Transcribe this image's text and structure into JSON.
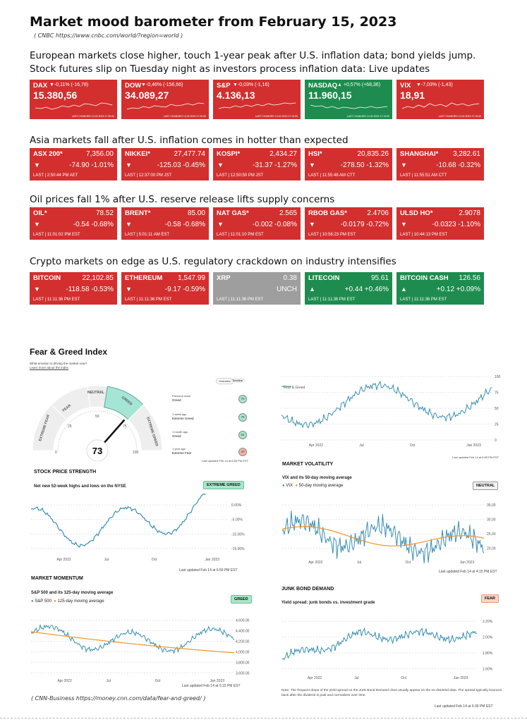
{
  "header": {
    "title": "Market mood barometer from February 15, 2023",
    "source": "( CNBC https://www.cnbc.com/world/?region=world )"
  },
  "sections": [
    {
      "headline": "European markets close higher, touch 1-year peak after U.S. inflation data; bond yields jump. Stock futures slip on Tuesday night as investors process inflation data: Live updates"
    },
    {
      "headline": "Asia markets fall after U.S. inflation comes in hotter than expected"
    },
    {
      "headline": "Oil prices fall 1% after U.S. reserve release lifts supply concerns"
    },
    {
      "headline": "Crypto markets on edge as U.S. regulatory crackdown on industry intensifies"
    }
  ],
  "us_tiles": [
    {
      "sym": "DAX",
      "chg": "▼-0,11% (-16,78)",
      "price": "15.380,56",
      "color": "#d32f2f",
      "footer": "LAST CHANGED 14.02.2023 17:35:00"
    },
    {
      "sym": "DOW",
      "chg": "▼-0,46% (-156,66)",
      "price": "34.089,27",
      "color": "#d32f2f",
      "footer": "LAST CHANGED 14.02.2023 17:20:00"
    },
    {
      "sym": "S&P",
      "chg": "▼-0,03% (-1,16)",
      "price": "4.136,13",
      "color": "#d32f2f",
      "footer": "LAST CHANGED 14.02.2023 17:19:00"
    },
    {
      "sym": "NASDAQ",
      "chg": "▲ +0,57% (+68,36)",
      "price": "11.960,15",
      "color": "#1e8c4e",
      "footer": "LAST CHANGED 14.02.2023 17:19:00"
    },
    {
      "sym": "VIX",
      "chg": "▼-7,03% (-1,43)",
      "price": "18,91",
      "color": "#d32f2f",
      "footer": "LAST CHANGED 14.02.2023 17:15:00"
    }
  ],
  "asia_tiles": [
    {
      "sym": "ASX 200*",
      "price": "7,356.00",
      "arrow": "▼",
      "chg": "-74.90  -1.01%",
      "last": "LAST | 2:50:44 PM AET",
      "color": "#d32f2f"
    },
    {
      "sym": "NIKKEI*",
      "price": "27,477.74",
      "arrow": "▼",
      "chg": "-125.03  -0.45%",
      "last": "LAST | 12:37:00 PM JST",
      "color": "#d32f2f"
    },
    {
      "sym": "KOSPI*",
      "price": "2,434.27",
      "arrow": "▼",
      "chg": "-31.37  -1.27%",
      "last": "LAST | 12:50:50 PM JST",
      "color": "#d32f2f"
    },
    {
      "sym": "HSI*",
      "price": "20,835.26",
      "arrow": "▼",
      "chg": "-278.50  -1.32%",
      "last": "LAST | 11:55:48 AM CTT",
      "color": "#d32f2f"
    },
    {
      "sym": "SHANGHAI*",
      "price": "3,282.61",
      "arrow": "▼",
      "chg": "-10.68  -0.32%",
      "last": "LAST | 11:55:51 AM CTT",
      "color": "#d32f2f"
    }
  ],
  "oil_tiles": [
    {
      "sym": "OIL*",
      "price": "78.52",
      "arrow": "▼",
      "chg": "-0.54  -0.68%",
      "last": "LAST | 11:01:02 PM EST",
      "color": "#d32f2f"
    },
    {
      "sym": "BRENT*",
      "price": "85.00",
      "arrow": "▼",
      "chg": "-0.58  -0.68%",
      "last": "LAST | 5:01:11 AM EST",
      "color": "#d32f2f"
    },
    {
      "sym": "NAT GAS*",
      "price": "2.565",
      "arrow": "▼",
      "chg": "-0.002  -0.08%",
      "last": "LAST | 11:01:10 PM EST",
      "color": "#d32f2f"
    },
    {
      "sym": "RBOB GAS*",
      "price": "2.4706",
      "arrow": "▼",
      "chg": "-0.0179  -0.72%",
      "last": "LAST | 10:56:23 PM EST",
      "color": "#d32f2f"
    },
    {
      "sym": "ULSD HO*",
      "price": "2.9078",
      "arrow": "▼",
      "chg": "-0.0323  -1.10%",
      "last": "LAST | 10:44:13 PM EST",
      "color": "#d32f2f"
    }
  ],
  "crypto_tiles": [
    {
      "sym": "BITCOIN",
      "price": "22,102.85",
      "arrow": "▼",
      "chg": "-118.58  -0.53%",
      "last": "LAST | 11:11:36 PM EST",
      "color": "#d32f2f"
    },
    {
      "sym": "ETHEREUM",
      "price": "1,547.99",
      "arrow": "▼",
      "chg": "-9.17  -0.59%",
      "last": "LAST | 11:11:36 PM EST",
      "color": "#d32f2f"
    },
    {
      "sym": "XRP",
      "price": "0.38",
      "arrow": "",
      "chg": "UNCH",
      "last": "LAST | 11:11:36 PM EST",
      "color": "#9e9e9e"
    },
    {
      "sym": "LITECOIN",
      "price": "95.61",
      "arrow": "▲",
      "chg": "+0.44  +0.46%",
      "last": "LAST | 11:11:36 PM EST",
      "color": "#1e8c4e"
    },
    {
      "sym": "BITCOIN CASH",
      "price": "126.56",
      "arrow": "▲",
      "chg": "+0.12  +0.09%",
      "last": "LAST | 11:11:36 PM EST",
      "color": "#1e8c4e"
    }
  ],
  "fear_greed": {
    "title": "Fear & Greed Index",
    "question": "What emotion is driving the market now?",
    "learn_more": "Learn more about the index",
    "tab_overview": "Overview",
    "tab_timeline": "Timeline",
    "value": 73,
    "labels": {
      "extreme_fear": "EXTREME FEAR",
      "fear": "FEAR",
      "neutral": "NEUTRAL",
      "greed": "GREED",
      "extreme_greed": "EXTREME GREED"
    },
    "scale": [
      "0",
      "25",
      "50",
      "75",
      "100"
    ],
    "history": [
      {
        "when": "Previous close",
        "label": "Greed",
        "value": "76"
      },
      {
        "when": "1 week ago",
        "label": "Extreme Greed",
        "value": "78"
      },
      {
        "when": "1 month ago",
        "label": "Greed",
        "value": "64"
      },
      {
        "when": "1 year ago",
        "label": "Extreme Fear",
        "value": "20"
      }
    ],
    "updated": "Last updated Feb 14 at 6:59 PM EST"
  },
  "timeline_chart": {
    "legend": "Fear & Greed",
    "y_ticks": [
      "100",
      "75",
      "50",
      "25",
      "0"
    ],
    "x_ticks": [
      "Apr 2022",
      "Jul",
      "Oct",
      "Jan 2023"
    ],
    "updated": "Last updated Feb 14 at 6:59 PM EST"
  },
  "stock_strength": {
    "title": "STOCK PRICE STRENGTH",
    "subtitle": "Net new 52-week highs and lows on the NYSE",
    "badge": "EXTREME GREED",
    "y_ticks": [
      "0.00%",
      "-5.00%",
      "-10.00%",
      "-15.00%"
    ],
    "x_ticks": [
      "Apr 2022",
      "Jul",
      "Oct",
      "Jan 2023"
    ],
    "updated": "Last updated Feb 14 at 6:59 PM EST"
  },
  "volatility": {
    "title": "MARKET VOLATILITY",
    "subtitle": "VIX and its 50-day moving average",
    "legend_a": "VIX",
    "legend_b": "50-day moving average",
    "badge": "NEUTRAL",
    "y_ticks": [
      "35,00",
      "30,00",
      "25,00",
      "20,00"
    ],
    "x_ticks": [
      "Apr 2022",
      "Jul",
      "Oct",
      "Jan 2023"
    ],
    "updated": "Last updated Feb 14 at 4:15 PM EST"
  },
  "momentum": {
    "title": "MARKET MOMENTUM",
    "subtitle": "S&P 500 and its 125-day moving average",
    "legend_a": "S&P 500",
    "legend_b": "125-day moving average",
    "badge": "GREED",
    "y_ticks": [
      "4,600.00",
      "4,400.00",
      "4,200.00",
      "4,000.00",
      "3,800.00",
      "3,600.00"
    ],
    "x_ticks": [
      "Apr 2022",
      "Jul",
      "Oct",
      "Jan 2023"
    ],
    "updated": "Last updated Feb 14 at 5:15 PM EST"
  },
  "junk_bond": {
    "title": "JUNK BOND DEMAND",
    "subtitle": "Yield spread: junk bonds vs. investment grade",
    "badge": "FEAR",
    "y_ticks": [
      "2.20%",
      "2.00%",
      "1.80%",
      "1.60%"
    ],
    "x_ticks": [
      "Apr 2022",
      "Jul",
      "Oct",
      "Jan 2023"
    ],
    "note": "Note: The frequent drops of the yield spread on the Junk Bond Demand chart usually appear on the ex-dividend date. The spread typically bounces back after the dividend is paid and normalizes over time.",
    "updated": "Last updated Feb 14 at 6:30 PM EST"
  },
  "footer_source": "( CNN-Business https://money.cnn.com/data/fear-and-greed/ )"
}
